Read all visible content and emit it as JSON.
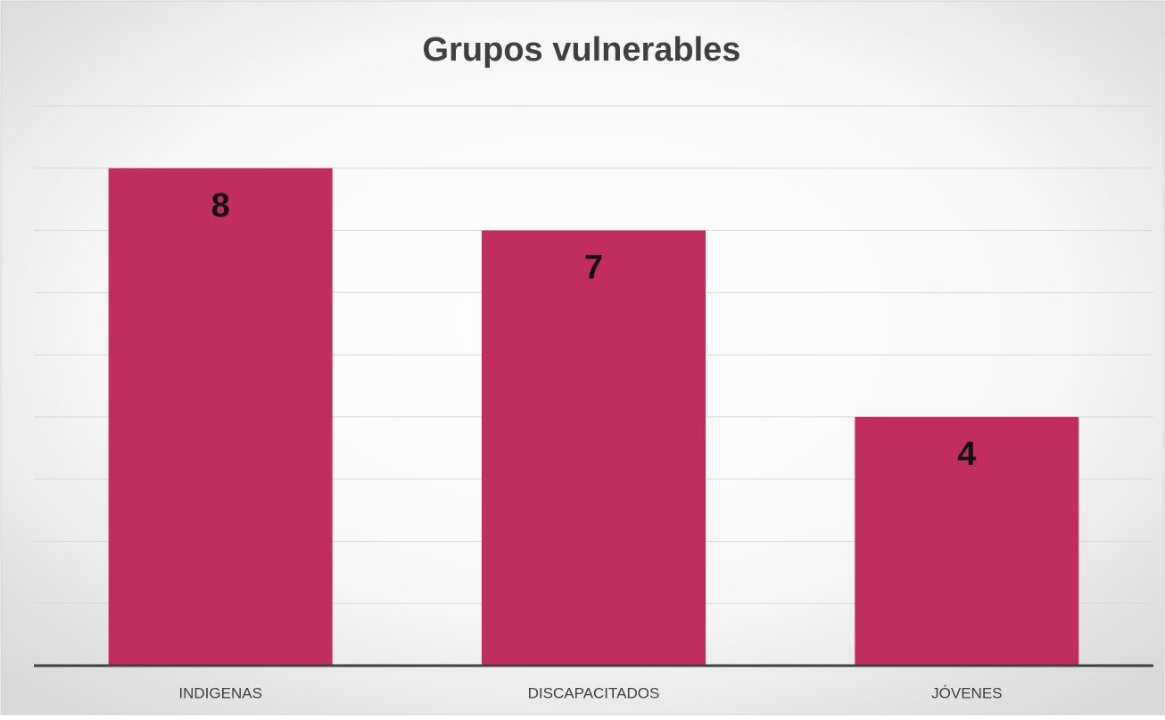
{
  "chart_data": {
    "type": "bar",
    "title": "Grupos vulnerables",
    "categories": [
      "INDIGENAS",
      "DISCAPACITADOS",
      "JÓVENES"
    ],
    "values": [
      8,
      7,
      4
    ],
    "color": "#c12d5f",
    "ylim": [
      0,
      9
    ],
    "yticks": [
      0,
      1,
      2,
      3,
      4,
      5,
      6,
      7,
      8,
      9
    ],
    "grid": true
  }
}
